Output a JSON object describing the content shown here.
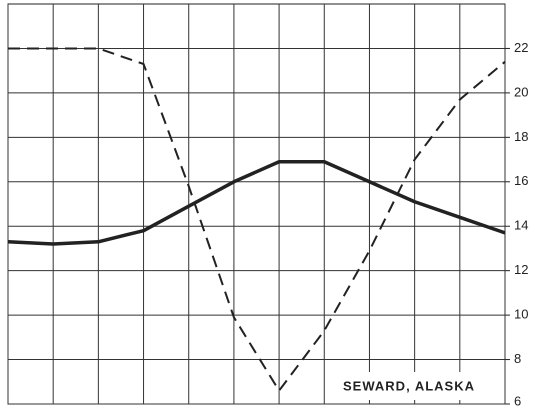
{
  "chart_data": {
    "type": "line",
    "annotation": "SEWARD, ALASKA",
    "x": [
      0,
      1,
      2,
      3,
      4,
      5,
      6,
      7,
      8,
      9,
      10,
      11
    ],
    "xlim": [
      0,
      11
    ],
    "series": [
      {
        "color": "#222222",
        "dashed": false,
        "values": [
          13.3,
          13.2,
          13.3,
          13.8,
          14.9,
          16.0,
          16.9,
          16.9,
          16.0,
          15.1,
          14.4,
          13.7
        ]
      },
      {
        "color": "#222222",
        "dashed": true,
        "values": [
          22.0,
          22.0,
          22.0,
          21.3,
          15.8,
          9.9,
          6.6,
          9.3,
          12.9,
          17.0,
          19.7,
          21.4
        ]
      }
    ],
    "ylim": [
      6,
      24
    ],
    "yticks": [
      6,
      8,
      10,
      12,
      14,
      16,
      18,
      20,
      22
    ],
    "grid": true
  }
}
